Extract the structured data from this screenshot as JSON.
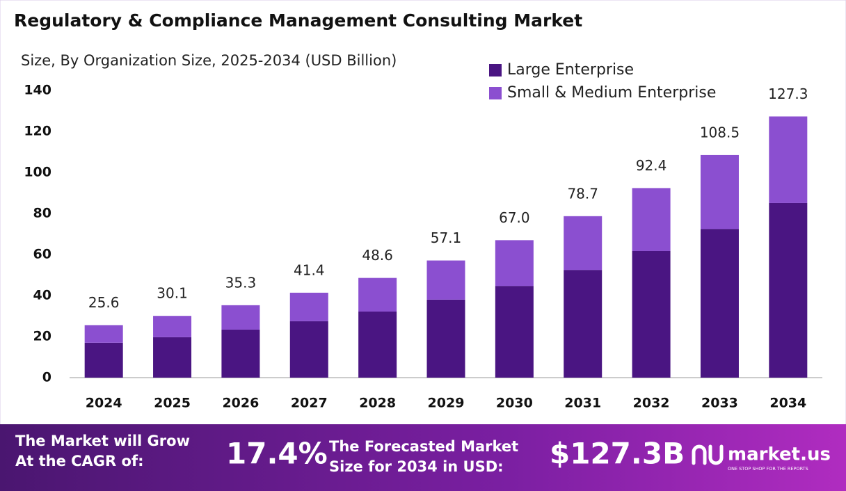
{
  "chart_data": {
    "type": "stacked_bar",
    "title": "Regulatory & Compliance Management Consulting Market",
    "subtitle": "Size, By Organization Size, 2025-2034 (USD Billion)",
    "categories": [
      "2024",
      "2025",
      "2026",
      "2027",
      "2028",
      "2029",
      "2030",
      "2031",
      "2032",
      "2033",
      "2034"
    ],
    "series": [
      {
        "name": "Large Enterprise",
        "color": "#4a1582",
        "values": [
          17.0,
          19.7,
          23.4,
          27.5,
          32.2,
          38.0,
          44.7,
          52.5,
          61.7,
          72.5,
          85.1
        ]
      },
      {
        "name": "Small & Medium Enterprise",
        "color": "#8b4fd0",
        "values": [
          8.6,
          10.4,
          11.9,
          13.9,
          16.4,
          19.1,
          22.3,
          26.2,
          30.7,
          36.0,
          42.2
        ]
      }
    ],
    "total_labels": [
      "25.6",
      "30.1",
      "35.3",
      "41.4",
      "48.6",
      "57.1",
      "67.0",
      "78.7",
      "92.4",
      "108.5",
      "127.3"
    ],
    "ylim": [
      0,
      140
    ],
    "yticks": [
      0,
      20,
      40,
      60,
      80,
      100,
      120,
      140
    ],
    "grid": false
  },
  "footer": {
    "cagr_text": [
      "The Market will Grow",
      "At the CAGR of:"
    ],
    "cagr_value": "17.4%",
    "forecast_text": [
      "The Forecasted Market",
      "Size for 2034 in USD:"
    ],
    "forecast_value": "$127.3B",
    "brand": "market.us",
    "tagline": "ONE STOP SHOP FOR THE REPORTS"
  }
}
